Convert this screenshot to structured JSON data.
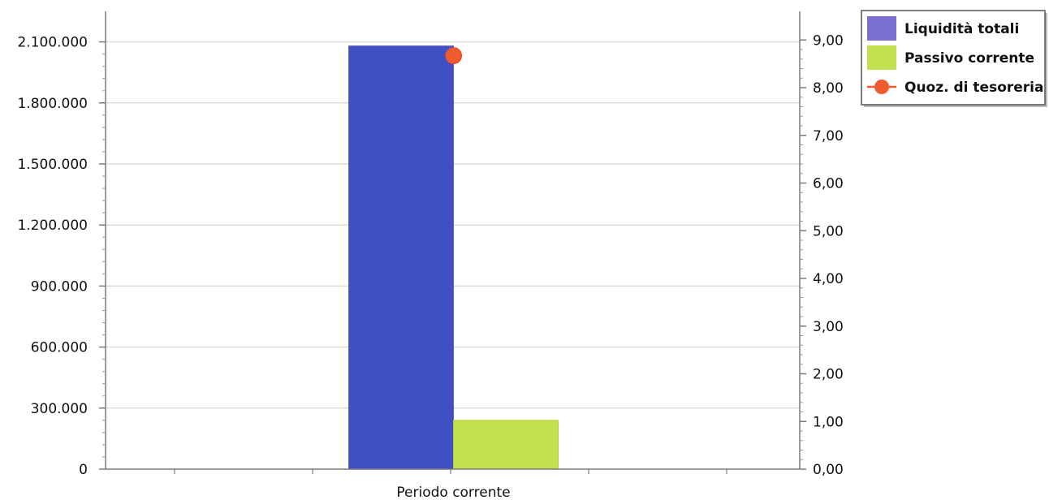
{
  "chart_data": {
    "type": "bar",
    "categories": [
      "Periodo corrente"
    ],
    "series": [
      {
        "name": "Liquidità totali",
        "kind": "bar",
        "axis": "left",
        "values": [
          2080000
        ],
        "color": "#3f4fc4"
      },
      {
        "name": "Passivo corrente",
        "kind": "bar",
        "axis": "left",
        "values": [
          240000
        ],
        "color": "#c5e04e"
      },
      {
        "name": "Quoz. di tesoreria",
        "kind": "line",
        "axis": "right",
        "values": [
          8.67
        ],
        "color": "#ee5b2f"
      }
    ],
    "y_left": {
      "ylim": [
        0,
        2250000
      ],
      "ticks": [
        0,
        300000,
        600000,
        900000,
        1200000,
        1500000,
        1800000,
        2100000
      ],
      "tick_labels": [
        "0",
        "300.000",
        "600.000",
        "900.000",
        "1.200.000",
        "1.500.000",
        "1.800.000",
        "2.100.000"
      ]
    },
    "y_right": {
      "ylim": [
        0,
        9.6
      ],
      "ticks": [
        0,
        1,
        2,
        3,
        4,
        5,
        6,
        7,
        8,
        9
      ],
      "tick_labels": [
        "0,00",
        "1,00",
        "2,00",
        "3,00",
        "4,00",
        "5,00",
        "6,00",
        "7,00",
        "8,00",
        "9,00"
      ]
    },
    "grid": true,
    "legend_position": "top-right"
  }
}
